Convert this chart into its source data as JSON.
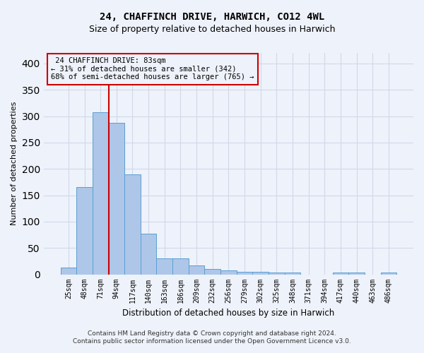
{
  "title_line1": "24, CHAFFINCH DRIVE, HARWICH, CO12 4WL",
  "title_line2": "Size of property relative to detached houses in Harwich",
  "xlabel": "Distribution of detached houses by size in Harwich",
  "ylabel": "Number of detached properties",
  "footer_line1": "Contains HM Land Registry data © Crown copyright and database right 2024.",
  "footer_line2": "Contains public sector information licensed under the Open Government Licence v3.0.",
  "categories": [
    "25sqm",
    "48sqm",
    "71sqm",
    "94sqm",
    "117sqm",
    "140sqm",
    "163sqm",
    "186sqm",
    "209sqm",
    "232sqm",
    "256sqm",
    "279sqm",
    "302sqm",
    "325sqm",
    "348sqm",
    "371sqm",
    "394sqm",
    "417sqm",
    "440sqm",
    "463sqm",
    "486sqm"
  ],
  "bar_values": [
    13,
    165,
    307,
    288,
    190,
    77,
    30,
    30,
    17,
    10,
    8,
    5,
    5,
    4,
    4,
    0,
    0,
    4,
    4,
    0,
    4
  ],
  "bar_color": "#aec6e8",
  "bar_edge_color": "#5a9fd4",
  "property_label": "24 CHAFFINCH DRIVE: 83sqm",
  "pct_smaller": 31,
  "count_smaller": 342,
  "pct_larger_semi": 68,
  "count_larger_semi": 765,
  "vline_color": "#cc0000",
  "vline_position": 2.5,
  "annotation_box_color": "#cc0000",
  "grid_color": "#d0d8e8",
  "background_color": "#eef2fa",
  "ylim": [
    0,
    420
  ],
  "yticks": [
    0,
    50,
    100,
    150,
    200,
    250,
    300,
    350,
    400
  ]
}
